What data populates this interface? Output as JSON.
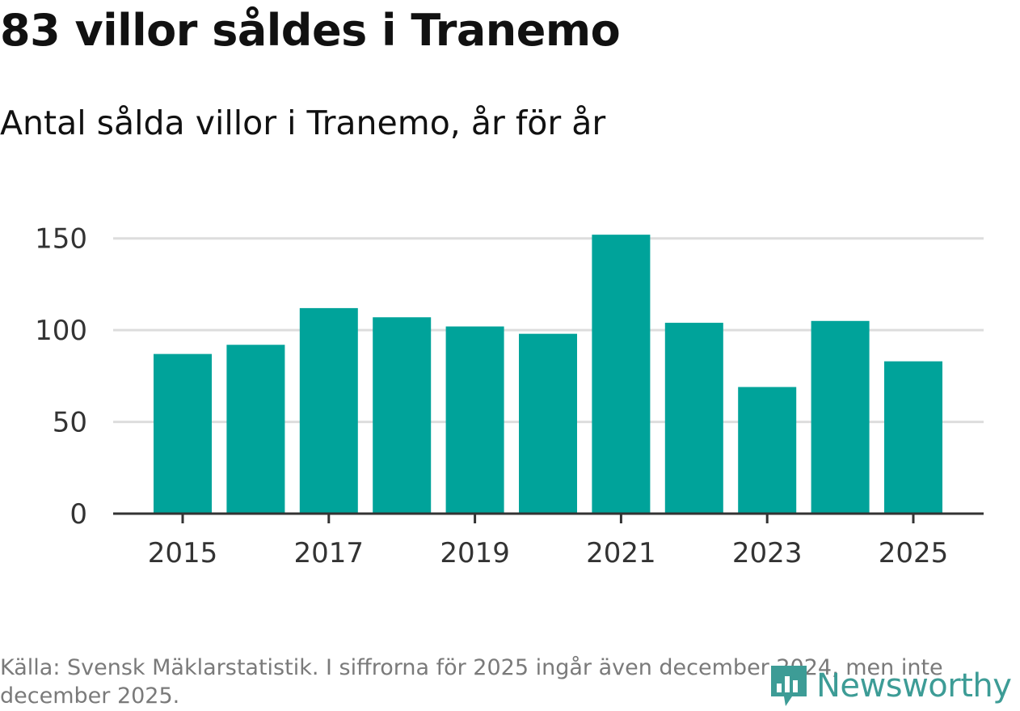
{
  "header": {
    "title": "83 villor såldes i Tranemo",
    "subtitle": "Antal sålda villor i Tranemo, år för år"
  },
  "chart_data": {
    "type": "bar",
    "title": "83 villor såldes i Tranemo",
    "subtitle": "Antal sålda villor i Tranemo, år för år",
    "categories": [
      2015,
      2016,
      2017,
      2018,
      2019,
      2020,
      2021,
      2022,
      2023,
      2024,
      2025
    ],
    "values": [
      87,
      92,
      112,
      107,
      102,
      98,
      152,
      104,
      69,
      105,
      83
    ],
    "x_tick_labels": [
      "2015",
      "2017",
      "2019",
      "2021",
      "2023",
      "2025"
    ],
    "y_ticks": [
      0,
      50,
      100,
      150
    ],
    "ylim": [
      0,
      160
    ],
    "xlabel": "",
    "ylabel": "",
    "grid": true,
    "bar_color": "#00a39a"
  },
  "footer": {
    "source": "Källa: Svensk Mäklarstatistik. I siffrorna för 2025 ingår även december 2024, men inte december 2025.",
    "brand": "Newsworthy",
    "brand_icon": "newsworthy-logo-icon",
    "brand_color": "#3d9c96"
  }
}
